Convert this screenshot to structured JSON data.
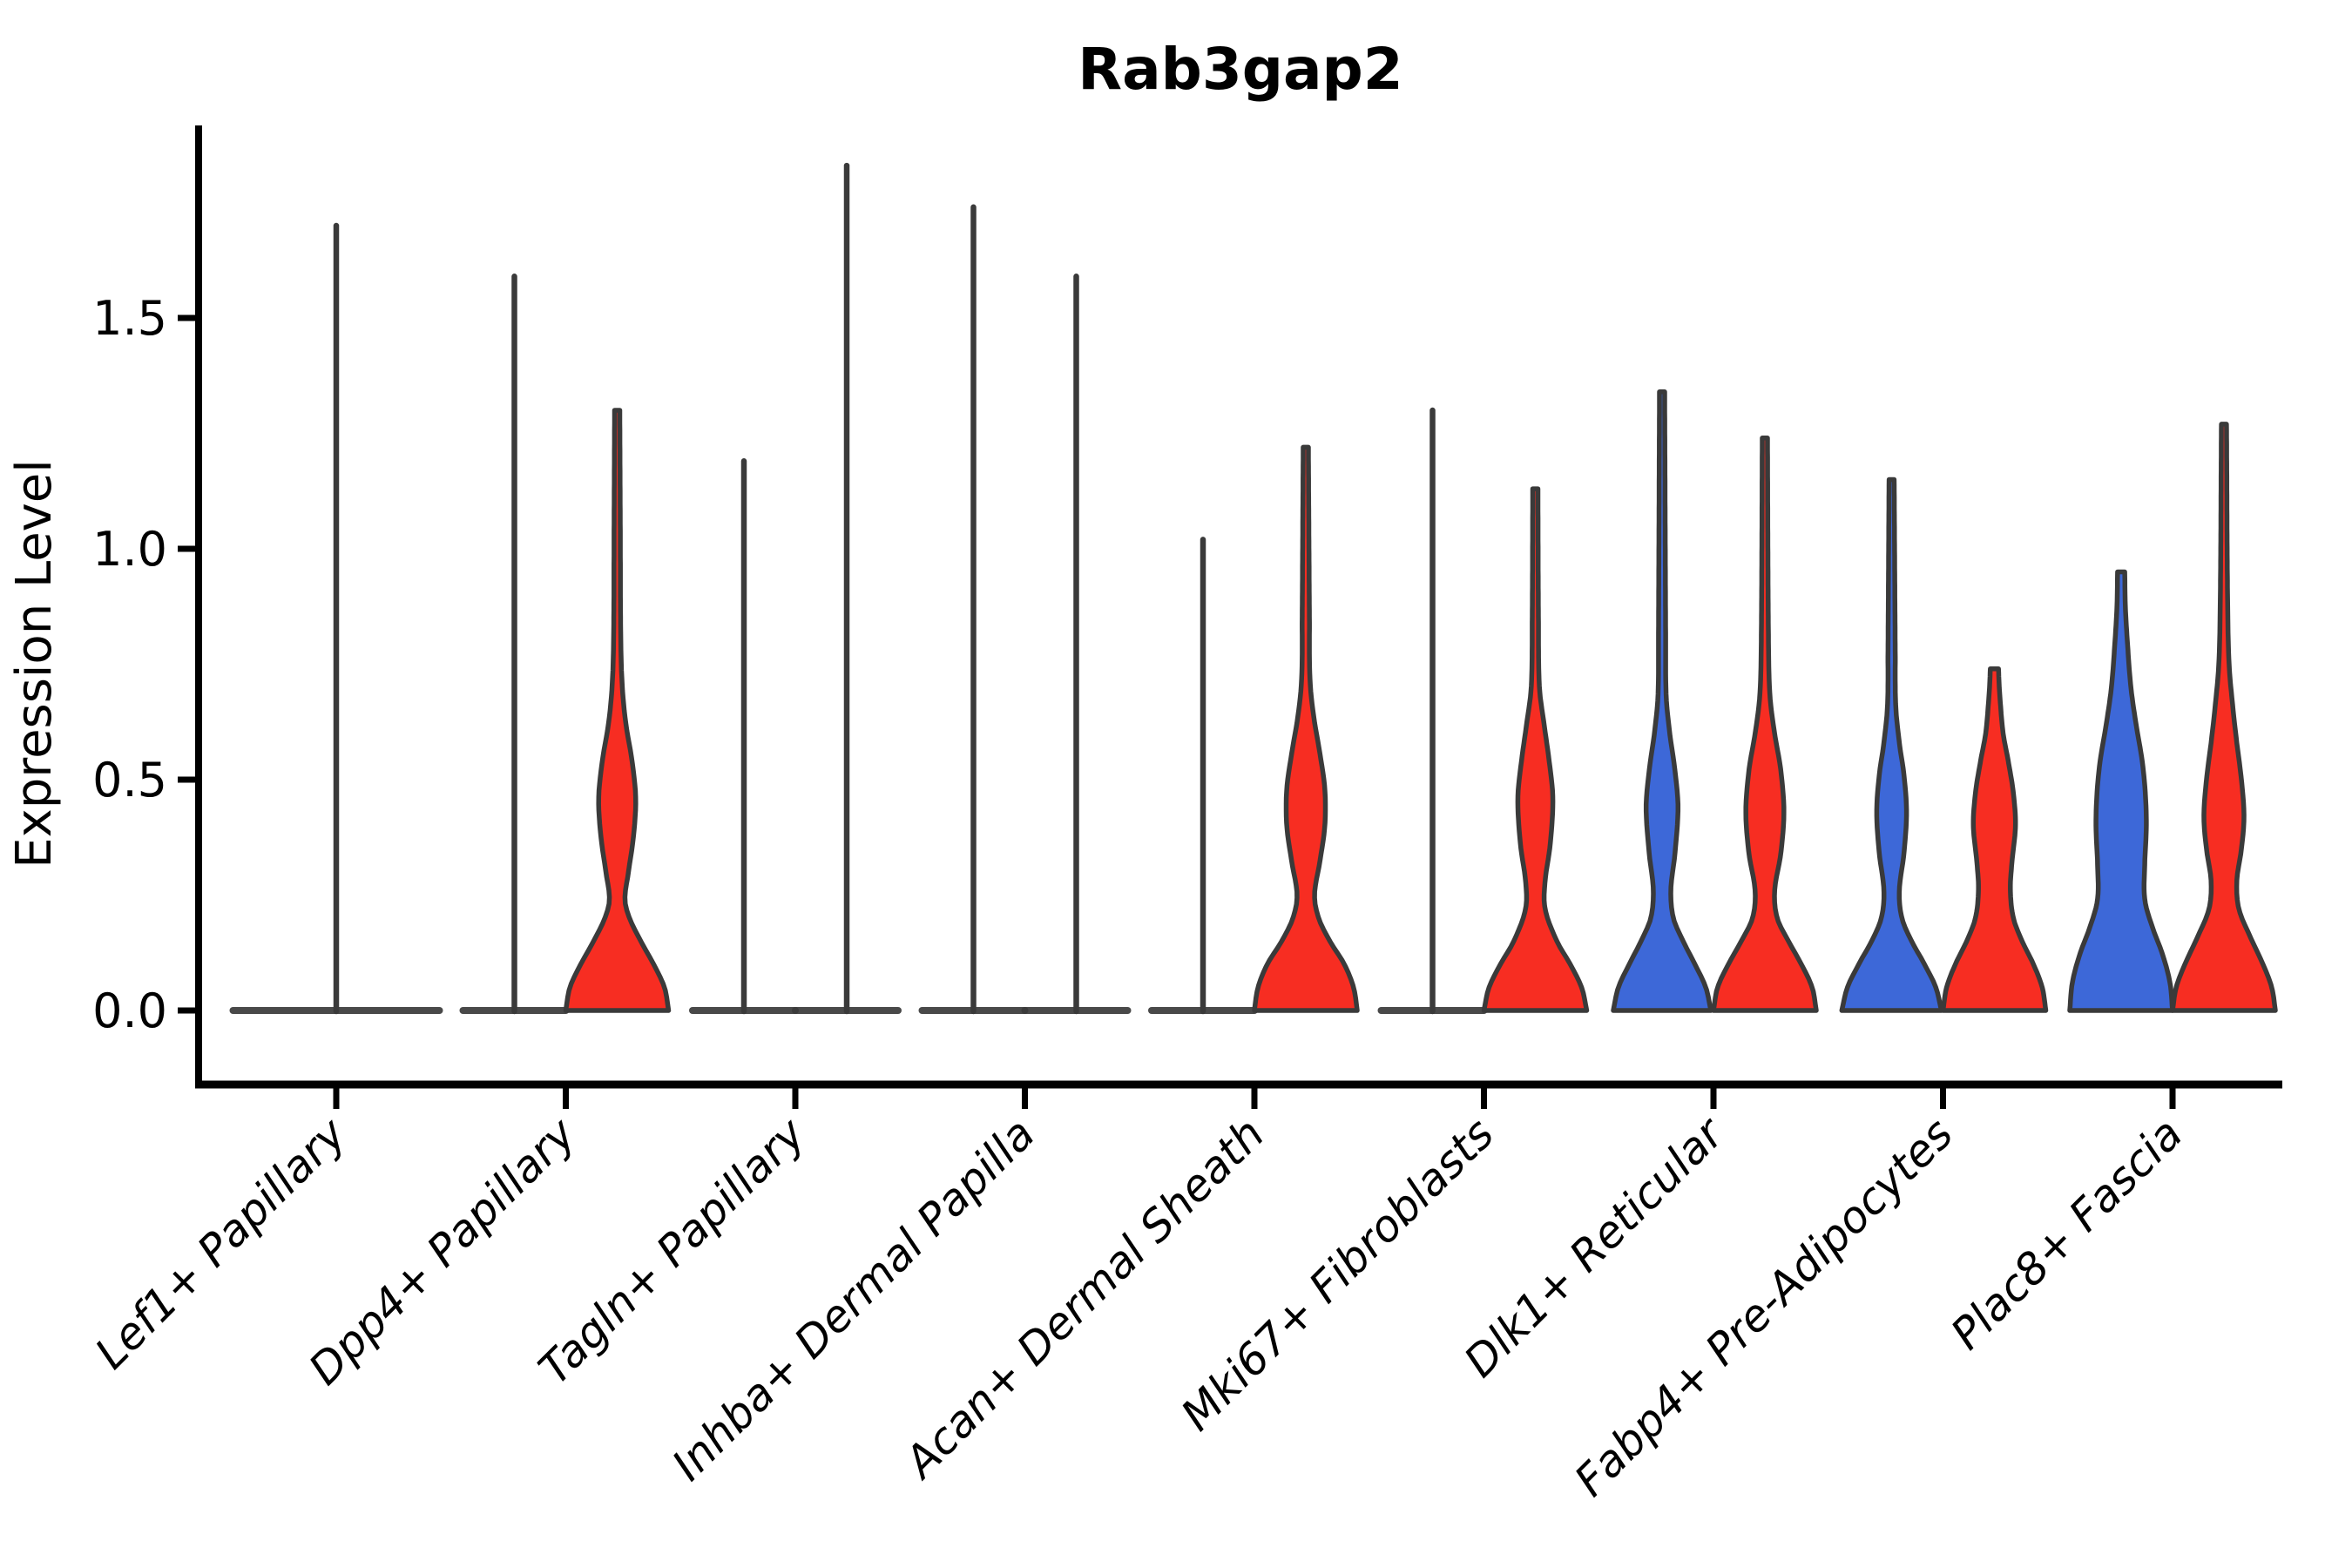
{
  "chart_data": {
    "type": "violin",
    "title": "Rab3gap2",
    "ylabel": "Expression Level",
    "xlabel": "",
    "grid": false,
    "legend_position": "none",
    "ytick_labels": [
      "0.0",
      "0.5",
      "1.0",
      "1.5"
    ],
    "ytick_values": [
      0.0,
      0.5,
      1.0,
      1.5
    ],
    "ylim": [
      -0.16,
      1.92
    ],
    "categories": [
      "Lef1+ Papillary",
      "Dpp4+ Papillary",
      "Tagln+ Papillary",
      "Inhba+ Dermal Papilla",
      "Acan+ Dermal Sheath",
      "Mki67+ Fibroblasts",
      "Dlk1+ Reticular",
      "Fabp4+ Pre-Adipocytes",
      "Plac8+ Fascia"
    ],
    "colors": {
      "blue": "#3d68d8",
      "red": "#f72d22",
      "none": "#ffffff",
      "outline": "#3a3a3a",
      "axis": "#000000"
    },
    "violins": [
      {
        "category_index": 0,
        "side": "single",
        "color": "none",
        "max_expression": 1.7,
        "shape": "flat"
      },
      {
        "category_index": 1,
        "side": "left",
        "color": "none",
        "max_expression": 1.59,
        "shape": "flat"
      },
      {
        "category_index": 1,
        "side": "right",
        "color": "red",
        "max_expression": 1.3,
        "shape": "density",
        "profile": [
          [
            0,
            1.0
          ],
          [
            0.05,
            0.92
          ],
          [
            0.1,
            0.71
          ],
          [
            0.15,
            0.46
          ],
          [
            0.2,
            0.24
          ],
          [
            0.24,
            0.15
          ],
          [
            0.3,
            0.22
          ],
          [
            0.38,
            0.32
          ],
          [
            0.46,
            0.36
          ],
          [
            0.54,
            0.29
          ],
          [
            0.62,
            0.17
          ],
          [
            0.7,
            0.1
          ],
          [
            0.8,
            0.07
          ],
          [
            1.05,
            0.06
          ],
          [
            1.3,
            0.05
          ]
        ]
      },
      {
        "category_index": 2,
        "side": "left",
        "color": "none",
        "max_expression": 1.19,
        "shape": "flat"
      },
      {
        "category_index": 2,
        "side": "right",
        "color": "none",
        "max_expression": 1.83,
        "shape": "flat"
      },
      {
        "category_index": 3,
        "side": "left",
        "color": "none",
        "max_expression": 1.74,
        "shape": "flat"
      },
      {
        "category_index": 3,
        "side": "right",
        "color": "none",
        "max_expression": 1.59,
        "shape": "flat"
      },
      {
        "category_index": 4,
        "side": "left",
        "color": "none",
        "max_expression": 1.02,
        "shape": "flat"
      },
      {
        "category_index": 4,
        "side": "right",
        "color": "red",
        "max_expression": 1.22,
        "shape": "density",
        "profile": [
          [
            0,
            1.0
          ],
          [
            0.05,
            0.93
          ],
          [
            0.1,
            0.75
          ],
          [
            0.15,
            0.47
          ],
          [
            0.2,
            0.25
          ],
          [
            0.25,
            0.17
          ],
          [
            0.32,
            0.27
          ],
          [
            0.4,
            0.37
          ],
          [
            0.48,
            0.37
          ],
          [
            0.56,
            0.27
          ],
          [
            0.64,
            0.15
          ],
          [
            0.72,
            0.08
          ],
          [
            0.85,
            0.07
          ],
          [
            1.22,
            0.05
          ]
        ]
      },
      {
        "category_index": 5,
        "side": "left",
        "color": "none",
        "max_expression": 1.3,
        "shape": "flat"
      },
      {
        "category_index": 5,
        "side": "right",
        "color": "red",
        "max_expression": 1.13,
        "shape": "density",
        "profile": [
          [
            0,
            1.0
          ],
          [
            0.05,
            0.9
          ],
          [
            0.1,
            0.68
          ],
          [
            0.15,
            0.42
          ],
          [
            0.22,
            0.19
          ],
          [
            0.28,
            0.19
          ],
          [
            0.36,
            0.29
          ],
          [
            0.46,
            0.34
          ],
          [
            0.54,
            0.27
          ],
          [
            0.62,
            0.17
          ],
          [
            0.7,
            0.08
          ],
          [
            0.85,
            0.06
          ],
          [
            1.13,
            0.05
          ]
        ]
      },
      {
        "category_index": 6,
        "side": "left",
        "color": "blue",
        "max_expression": 1.34,
        "shape": "density",
        "profile": [
          [
            0,
            0.95
          ],
          [
            0.05,
            0.85
          ],
          [
            0.1,
            0.64
          ],
          [
            0.15,
            0.41
          ],
          [
            0.2,
            0.22
          ],
          [
            0.26,
            0.17
          ],
          [
            0.34,
            0.25
          ],
          [
            0.44,
            0.31
          ],
          [
            0.52,
            0.25
          ],
          [
            0.6,
            0.15
          ],
          [
            0.68,
            0.08
          ],
          [
            0.8,
            0.07
          ],
          [
            1.34,
            0.05
          ]
        ]
      },
      {
        "category_index": 6,
        "side": "right",
        "color": "red",
        "max_expression": 1.24,
        "shape": "density",
        "profile": [
          [
            0,
            1.0
          ],
          [
            0.05,
            0.92
          ],
          [
            0.1,
            0.71
          ],
          [
            0.15,
            0.46
          ],
          [
            0.2,
            0.24
          ],
          [
            0.26,
            0.19
          ],
          [
            0.34,
            0.31
          ],
          [
            0.43,
            0.37
          ],
          [
            0.52,
            0.31
          ],
          [
            0.6,
            0.19
          ],
          [
            0.68,
            0.1
          ],
          [
            0.8,
            0.07
          ],
          [
            1.24,
            0.05
          ]
        ]
      },
      {
        "category_index": 7,
        "side": "left",
        "color": "blue",
        "max_expression": 1.15,
        "shape": "density",
        "profile": [
          [
            0,
            0.97
          ],
          [
            0.05,
            0.86
          ],
          [
            0.1,
            0.64
          ],
          [
            0.15,
            0.39
          ],
          [
            0.2,
            0.2
          ],
          [
            0.26,
            0.15
          ],
          [
            0.34,
            0.24
          ],
          [
            0.43,
            0.29
          ],
          [
            0.51,
            0.24
          ],
          [
            0.58,
            0.15
          ],
          [
            0.66,
            0.08
          ],
          [
            0.78,
            0.07
          ],
          [
            1.15,
            0.05
          ]
        ]
      },
      {
        "category_index": 7,
        "side": "right",
        "color": "red",
        "max_expression": 0.74,
        "shape": "density",
        "profile": [
          [
            0,
            1.0
          ],
          [
            0.05,
            0.93
          ],
          [
            0.1,
            0.76
          ],
          [
            0.15,
            0.54
          ],
          [
            0.2,
            0.37
          ],
          [
            0.26,
            0.31
          ],
          [
            0.32,
            0.34
          ],
          [
            0.4,
            0.41
          ],
          [
            0.47,
            0.37
          ],
          [
            0.54,
            0.27
          ],
          [
            0.6,
            0.17
          ],
          [
            0.66,
            0.12
          ],
          [
            0.71,
            0.09
          ],
          [
            0.74,
            0.08
          ]
        ]
      },
      {
        "category_index": 8,
        "side": "left",
        "color": "blue",
        "max_expression": 0.95,
        "shape": "density",
        "profile": [
          [
            0,
            1.0
          ],
          [
            0.06,
            0.95
          ],
          [
            0.12,
            0.81
          ],
          [
            0.18,
            0.61
          ],
          [
            0.24,
            0.46
          ],
          [
            0.32,
            0.46
          ],
          [
            0.4,
            0.49
          ],
          [
            0.47,
            0.47
          ],
          [
            0.54,
            0.41
          ],
          [
            0.62,
            0.29
          ],
          [
            0.7,
            0.19
          ],
          [
            0.8,
            0.12
          ],
          [
            0.88,
            0.08
          ],
          [
            0.95,
            0.07
          ]
        ]
      },
      {
        "category_index": 8,
        "side": "right",
        "color": "red",
        "max_expression": 1.27,
        "shape": "density",
        "profile": [
          [
            0,
            1.0
          ],
          [
            0.05,
            0.93
          ],
          [
            0.1,
            0.76
          ],
          [
            0.16,
            0.51
          ],
          [
            0.22,
            0.29
          ],
          [
            0.28,
            0.25
          ],
          [
            0.35,
            0.34
          ],
          [
            0.42,
            0.39
          ],
          [
            0.5,
            0.34
          ],
          [
            0.58,
            0.25
          ],
          [
            0.66,
            0.17
          ],
          [
            0.75,
            0.1
          ],
          [
            0.9,
            0.07
          ],
          [
            1.27,
            0.05
          ]
        ]
      }
    ]
  }
}
